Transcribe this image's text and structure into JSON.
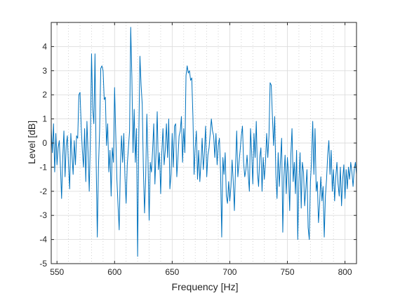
{
  "chart_data": {
    "type": "line",
    "title": "",
    "xlabel": "Frequency [Hz]",
    "ylabel": "Level [dB]",
    "xlim": [
      545,
      810
    ],
    "ylim": [
      -5,
      5
    ],
    "x_ticks": [
      550,
      600,
      650,
      700,
      750,
      800
    ],
    "y_ticks": [
      -5,
      -4,
      -3,
      -2,
      -1,
      0,
      1,
      2,
      3,
      4
    ],
    "x_tick_labels": [
      "550",
      "600",
      "650",
      "700",
      "750",
      "800"
    ],
    "y_tick_labels": [
      "-5",
      "-4",
      "-3",
      "-2",
      "-1",
      "0",
      "1",
      "2",
      "3",
      "4"
    ],
    "grid": true,
    "minor_grid": true,
    "legend": "none",
    "series": [
      {
        "color": "#0072BD",
        "points": [
          [
            545.0,
            0.6
          ],
          [
            546.0,
            -0.4
          ],
          [
            547.0,
            0.8
          ],
          [
            548.0,
            -1.2
          ],
          [
            549.0,
            0.4
          ],
          [
            550.0,
            -0.9
          ],
          [
            551.0,
            -0.2
          ],
          [
            552.0,
            0.1
          ],
          [
            553.0,
            -1.0
          ],
          [
            554.0,
            -2.3
          ],
          [
            555.0,
            -0.6
          ],
          [
            556.0,
            0.5
          ],
          [
            557.0,
            -1.4
          ],
          [
            558.0,
            -0.1
          ],
          [
            559.0,
            0.3
          ],
          [
            560.0,
            -0.9
          ],
          [
            561.0,
            -1.9
          ],
          [
            562.0,
            0.4
          ],
          [
            563.0,
            -0.5
          ],
          [
            564.0,
            -1.3
          ],
          [
            565.0,
            0.1
          ],
          [
            566.0,
            -0.9
          ],
          [
            567.0,
            0.3
          ],
          [
            568.0,
            0.2
          ],
          [
            569.0,
            2.0
          ],
          [
            570.0,
            2.1
          ],
          [
            571.0,
            0.7
          ],
          [
            572.0,
            -0.3
          ],
          [
            573.0,
            -1.0
          ],
          [
            574.0,
            0.6
          ],
          [
            575.0,
            -1.6
          ],
          [
            576.0,
            0.9
          ],
          [
            577.0,
            -0.4
          ],
          [
            578.0,
            -2.0
          ],
          [
            579.0,
            0.2
          ],
          [
            580.0,
            3.7
          ],
          [
            581.0,
            1.4
          ],
          [
            582.0,
            0.8
          ],
          [
            583.0,
            3.7
          ],
          [
            584.0,
            -0.8
          ],
          [
            585.0,
            -3.9
          ],
          [
            586.0,
            -1.0
          ],
          [
            587.0,
            0.5
          ],
          [
            588.0,
            3.1
          ],
          [
            589.0,
            3.2
          ],
          [
            590.0,
            3.0
          ],
          [
            591.0,
            1.8
          ],
          [
            592.0,
            1.9
          ],
          [
            593.0,
            -0.1
          ],
          [
            594.0,
            0.8
          ],
          [
            595.0,
            -1.2
          ],
          [
            596.0,
            -0.3
          ],
          [
            597.0,
            -2.2
          ],
          [
            598.0,
            -0.2
          ],
          [
            599.0,
            -0.8
          ],
          [
            600.0,
            2.3
          ],
          [
            601.0,
            0.4
          ],
          [
            602.0,
            -1.5
          ],
          [
            603.0,
            -2.6
          ],
          [
            604.0,
            -3.6
          ],
          [
            605.0,
            -1.0
          ],
          [
            606.0,
            0.3
          ],
          [
            607.0,
            -0.8
          ],
          [
            608.0,
            0.4
          ],
          [
            609.0,
            -1.4
          ],
          [
            610.0,
            -2.5
          ],
          [
            611.0,
            -0.9
          ],
          [
            612.0,
            -0.2
          ],
          [
            613.0,
            0.5
          ],
          [
            614.0,
            4.8
          ],
          [
            615.0,
            2.7
          ],
          [
            616.0,
            -0.4
          ],
          [
            617.0,
            1.4
          ],
          [
            618.0,
            -0.8
          ],
          [
            619.0,
            0.6
          ],
          [
            620.0,
            -4.7
          ],
          [
            621.0,
            0.2
          ],
          [
            622.0,
            3.6
          ],
          [
            623.0,
            2.4
          ],
          [
            624.0,
            1.6
          ],
          [
            625.0,
            -1.1
          ],
          [
            626.0,
            -2.9
          ],
          [
            627.0,
            -1.4
          ],
          [
            628.0,
            1.2
          ],
          [
            629.0,
            -0.7
          ],
          [
            630.0,
            -3.2
          ],
          [
            631.0,
            -0.8
          ],
          [
            632.0,
            -1.2
          ],
          [
            633.0,
            -0.3
          ],
          [
            634.0,
            0.8
          ],
          [
            635.0,
            -1.7
          ],
          [
            636.0,
            -0.4
          ],
          [
            637.0,
            1.3
          ],
          [
            638.0,
            -1.1
          ],
          [
            639.0,
            -0.4
          ],
          [
            640.0,
            -2.1
          ],
          [
            641.0,
            -0.4
          ],
          [
            642.0,
            0.6
          ],
          [
            643.0,
            -0.9
          ],
          [
            644.0,
            -0.3
          ],
          [
            645.0,
            0.8
          ],
          [
            646.0,
            -0.6
          ],
          [
            647.0,
            1.0
          ],
          [
            648.0,
            -1.9
          ],
          [
            649.0,
            -1.3
          ],
          [
            650.0,
            0.4
          ],
          [
            651.0,
            -1.0
          ],
          [
            652.0,
            0.7
          ],
          [
            653.0,
            0.8
          ],
          [
            654.0,
            -1.4
          ],
          [
            655.0,
            -0.6
          ],
          [
            656.0,
            0.3
          ],
          [
            657.0,
            0.5
          ],
          [
            658.0,
            1.1
          ],
          [
            659.0,
            -0.8
          ],
          [
            660.0,
            0.6
          ],
          [
            661.0,
            -0.4
          ],
          [
            662.0,
            2.8
          ],
          [
            663.0,
            3.2
          ],
          [
            664.0,
            2.9
          ],
          [
            665.0,
            3.0
          ],
          [
            666.0,
            2.6
          ],
          [
            667.0,
            2.7
          ],
          [
            668.0,
            1.1
          ],
          [
            669.0,
            -1.3
          ],
          [
            670.0,
            -0.2
          ],
          [
            671.0,
            0.5
          ],
          [
            672.0,
            -1.5
          ],
          [
            673.0,
            -0.3
          ],
          [
            674.0,
            -1.6
          ],
          [
            675.0,
            -0.8
          ],
          [
            676.0,
            0.2
          ],
          [
            677.0,
            -1.1
          ],
          [
            678.0,
            -0.4
          ],
          [
            679.0,
            0.7
          ],
          [
            680.0,
            -1.4
          ],
          [
            681.0,
            -0.5
          ],
          [
            682.0,
            -0.2
          ],
          [
            683.0,
            0.4
          ],
          [
            684.0,
            1.0
          ],
          [
            685.0,
            0.5
          ],
          [
            686.0,
            0.3
          ],
          [
            687.0,
            -0.6
          ],
          [
            688.0,
            0.4
          ],
          [
            689.0,
            -0.9
          ],
          [
            690.0,
            -0.1
          ],
          [
            691.0,
            0.2
          ],
          [
            692.0,
            -1.2
          ],
          [
            693.0,
            -3.9
          ],
          [
            694.0,
            -0.6
          ],
          [
            695.0,
            -1.3
          ],
          [
            696.0,
            -0.4
          ],
          [
            697.0,
            -2.2
          ],
          [
            698.0,
            -2.5
          ],
          [
            699.0,
            -1.6
          ],
          [
            700.0,
            -2.4
          ],
          [
            701.0,
            -1.8
          ],
          [
            702.0,
            -0.7
          ],
          [
            703.0,
            -1.6
          ],
          [
            704.0,
            -2.8
          ],
          [
            705.0,
            -1.0
          ],
          [
            706.0,
            0.5
          ],
          [
            707.0,
            -1.4
          ],
          [
            708.0,
            -0.8
          ],
          [
            709.0,
            -0.3
          ],
          [
            710.0,
            0.3
          ],
          [
            711.0,
            0.7
          ],
          [
            712.0,
            -0.8
          ],
          [
            713.0,
            -1.4
          ],
          [
            714.0,
            -1.1
          ],
          [
            715.0,
            -0.5
          ],
          [
            716.0,
            -1.3
          ],
          [
            717.0,
            -2.0
          ],
          [
            718.0,
            0.6
          ],
          [
            719.0,
            -0.4
          ],
          [
            720.0,
            -1.7
          ],
          [
            721.0,
            0.4
          ],
          [
            722.0,
            -0.6
          ],
          [
            723.0,
            0.9
          ],
          [
            724.0,
            -1.2
          ],
          [
            725.0,
            -1.8
          ],
          [
            726.0,
            -0.6
          ],
          [
            727.0,
            -0.2
          ],
          [
            728.0,
            -2.0
          ],
          [
            729.0,
            -0.6
          ],
          [
            730.0,
            -1.5
          ],
          [
            731.0,
            -0.8
          ],
          [
            732.0,
            0.4
          ],
          [
            733.0,
            -0.6
          ],
          [
            734.0,
            0.3
          ],
          [
            735.0,
            2.5
          ],
          [
            736.0,
            2.4
          ],
          [
            737.0,
            1.1
          ],
          [
            738.0,
            -0.1
          ],
          [
            739.0,
            1.1
          ],
          [
            740.0,
            -1.3
          ],
          [
            741.0,
            -2.3
          ],
          [
            742.0,
            -0.4
          ],
          [
            743.0,
            -1.8
          ],
          [
            744.0,
            -0.7
          ],
          [
            745.0,
            0.2
          ],
          [
            746.0,
            -3.7
          ],
          [
            747.0,
            -1.4
          ],
          [
            748.0,
            -0.5
          ],
          [
            749.0,
            -2.1
          ],
          [
            750.0,
            -0.6
          ],
          [
            751.0,
            -1.3
          ],
          [
            752.0,
            -2.8
          ],
          [
            753.0,
            -0.5
          ],
          [
            754.0,
            0.6
          ],
          [
            755.0,
            -1.6
          ],
          [
            756.0,
            -0.8
          ],
          [
            757.0,
            -2.1
          ],
          [
            758.0,
            -0.3
          ],
          [
            759.0,
            -4.0
          ],
          [
            760.0,
            -1.6
          ],
          [
            761.0,
            -0.4
          ],
          [
            762.0,
            -2.7
          ],
          [
            763.0,
            -0.8
          ],
          [
            764.0,
            -1.2
          ],
          [
            765.0,
            -2.6
          ],
          [
            766.0,
            -1.9
          ],
          [
            767.0,
            -1.1
          ],
          [
            768.0,
            -3.5
          ],
          [
            769.0,
            -4.0
          ],
          [
            770.0,
            -1.6
          ],
          [
            771.0,
            -0.7
          ],
          [
            772.0,
            0.9
          ],
          [
            773.0,
            -1.3
          ],
          [
            774.0,
            0.6
          ],
          [
            775.0,
            -2.0
          ],
          [
            776.0,
            -1.6
          ],
          [
            777.0,
            -3.3
          ],
          [
            778.0,
            -2.5
          ],
          [
            779.0,
            -1.4
          ],
          [
            780.0,
            -2.4
          ],
          [
            781.0,
            -1.8
          ],
          [
            782.0,
            -3.9
          ],
          [
            783.0,
            -2.2
          ],
          [
            784.0,
            -1.5
          ],
          [
            785.0,
            -0.5
          ],
          [
            786.0,
            0.1
          ],
          [
            787.0,
            -1.3
          ],
          [
            788.0,
            -0.3
          ],
          [
            789.0,
            -2.0
          ],
          [
            790.0,
            -1.1
          ],
          [
            791.0,
            -2.4
          ],
          [
            792.0,
            -1.4
          ],
          [
            793.0,
            -0.8
          ],
          [
            794.0,
            -1.7
          ],
          [
            795.0,
            -2.2
          ],
          [
            796.0,
            -1.0
          ],
          [
            797.0,
            -2.6
          ],
          [
            798.0,
            -1.5
          ],
          [
            799.0,
            -0.9
          ],
          [
            800.0,
            -2.3
          ],
          [
            801.0,
            -1.1
          ],
          [
            802.0,
            -1.9
          ],
          [
            803.0,
            -1.0
          ],
          [
            804.0,
            -1.5
          ],
          [
            805.0,
            -0.8
          ],
          [
            806.0,
            -1.2
          ],
          [
            807.0,
            -1.8
          ],
          [
            808.0,
            -1.1
          ],
          [
            809.0,
            -0.8
          ],
          [
            810.0,
            -1.3
          ]
        ]
      }
    ]
  }
}
